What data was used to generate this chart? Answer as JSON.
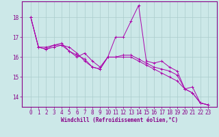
{
  "xlabel": "Windchill (Refroidissement éolien,°C)",
  "background_color": "#cce8e8",
  "line_color": "#aa00aa",
  "grid_color": "#aacccc",
  "x_values": [
    0,
    1,
    2,
    3,
    4,
    5,
    6,
    7,
    8,
    9,
    10,
    11,
    12,
    13,
    14,
    15,
    16,
    17,
    18,
    19,
    20,
    21,
    22,
    23
  ],
  "y_values": [
    [
      18.0,
      16.5,
      16.5,
      16.6,
      16.6,
      16.5,
      16.2,
      15.8,
      15.5,
      15.4,
      16.0,
      17.0,
      17.0,
      17.8,
      18.6,
      15.8,
      15.7,
      15.8,
      15.5,
      15.3,
      14.4,
      14.5,
      13.7,
      13.6
    ],
    [
      18.0,
      16.5,
      16.4,
      16.6,
      16.7,
      16.3,
      16.1,
      15.9,
      15.5,
      15.4,
      16.0,
      16.0,
      16.0,
      16.0,
      15.8,
      15.6,
      15.4,
      15.2,
      15.0,
      14.8,
      14.4,
      14.2,
      13.7,
      13.6
    ],
    [
      18.0,
      16.5,
      16.4,
      16.5,
      16.6,
      16.3,
      16.0,
      16.2,
      15.8,
      15.5,
      16.0,
      16.0,
      16.1,
      16.1,
      15.9,
      15.7,
      15.5,
      15.4,
      15.3,
      15.1,
      14.4,
      14.2,
      13.7,
      13.6
    ]
  ],
  "ylim": [
    13.5,
    18.8
  ],
  "yticks": [
    14,
    15,
    16,
    17,
    18
  ],
  "xticks": [
    0,
    1,
    2,
    3,
    4,
    5,
    6,
    7,
    8,
    9,
    10,
    11,
    12,
    13,
    14,
    15,
    16,
    17,
    18,
    19,
    20,
    21,
    22,
    23
  ],
  "tick_fontsize": 5.5,
  "xlabel_fontsize": 5.5
}
